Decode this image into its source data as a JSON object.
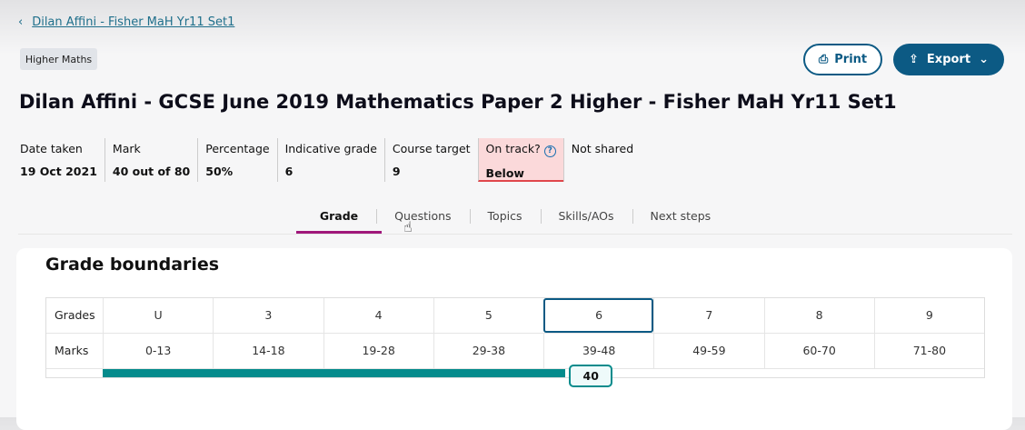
{
  "breadcrumb": {
    "label": "Dilan Affini - Fisher MaH Yr11 Set1"
  },
  "tag": "Higher Maths",
  "actions": {
    "print": "Print",
    "export": "Export"
  },
  "title": "Dilan Affini - GCSE June 2019 Mathematics Paper 2 Higher - Fisher MaH Yr11 Set1",
  "stats": [
    {
      "label": "Date taken",
      "value": "19 Oct 2021"
    },
    {
      "label": "Mark",
      "value": "40 out of 80"
    },
    {
      "label": "Percentage",
      "value": "50%"
    },
    {
      "label": "Indicative grade",
      "value": "6"
    },
    {
      "label": "Course target",
      "value": "9"
    },
    {
      "label": "On track?",
      "value": "Below"
    },
    {
      "label": "Not shared",
      "value": ""
    }
  ],
  "tabs": [
    "Grade",
    "Questions",
    "Topics",
    "Skills/AOs",
    "Next steps"
  ],
  "active_tab": "Grade",
  "card": {
    "title": "Grade boundaries"
  },
  "table": {
    "row_labels": [
      "Grades",
      "Marks"
    ],
    "grades": [
      "U",
      "3",
      "4",
      "5",
      "6",
      "7",
      "8",
      "9"
    ],
    "marks": [
      "0-13",
      "14-18",
      "19-28",
      "29-38",
      "39-48",
      "49-59",
      "60-70",
      "71-80"
    ],
    "selected_grade": "6",
    "mark": 40,
    "bar_label": "40"
  },
  "colors": {
    "primary": "#0c5a84",
    "bar": "#058b8c",
    "warn": "#fbd9da",
    "tab_accent": "#a0177a"
  }
}
